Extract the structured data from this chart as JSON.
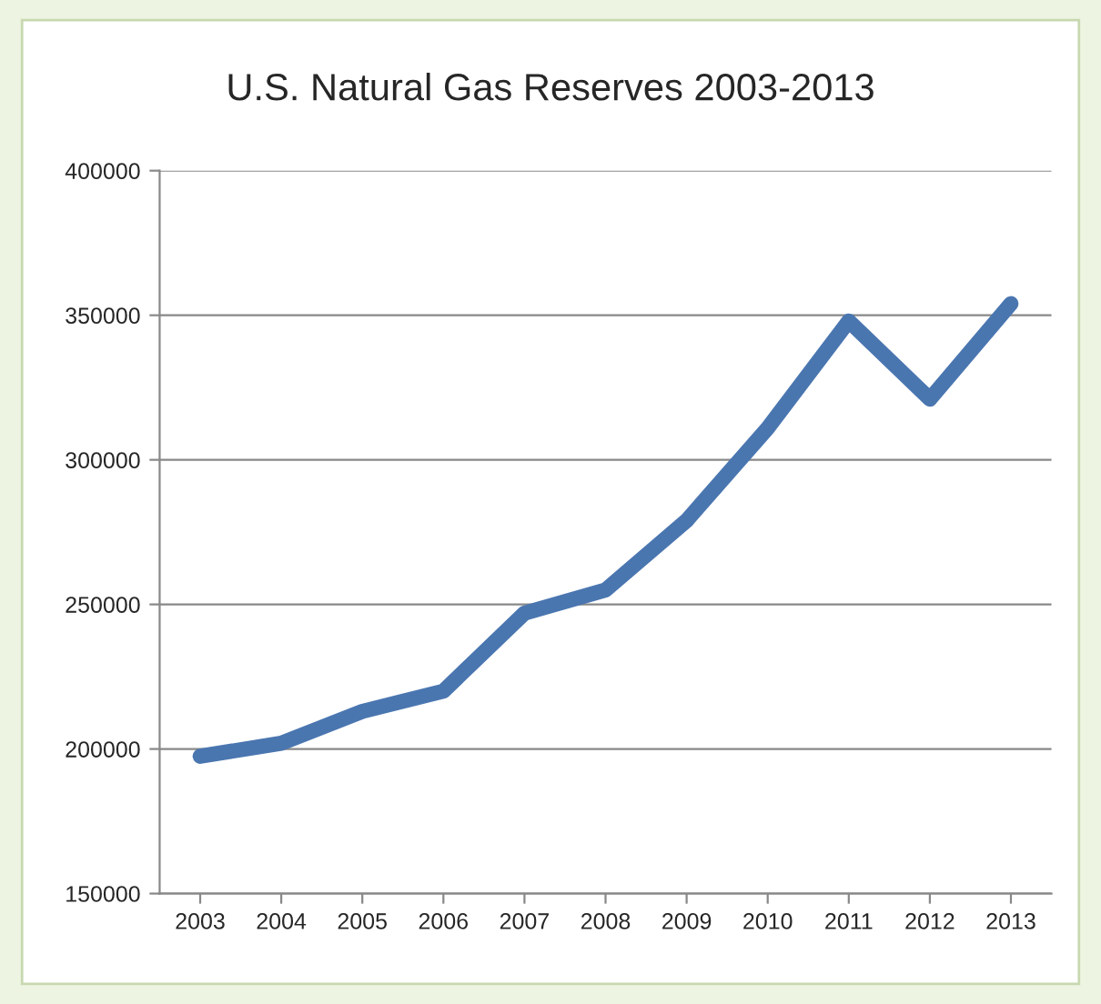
{
  "chart_data": {
    "type": "line",
    "title": "U.S. Natural Gas Reserves 2003-2013",
    "categories": [
      "2003",
      "2004",
      "2005",
      "2006",
      "2007",
      "2008",
      "2009",
      "2010",
      "2011",
      "2012",
      "2013"
    ],
    "series": [
      {
        "color": "#4a76b0",
        "values": [
          197500,
          202000,
          213000,
          220000,
          247000,
          255000,
          279000,
          311000,
          348000,
          321000,
          354000
        ]
      }
    ],
    "ylim": [
      150000,
      400000
    ],
    "yticks": [
      150000,
      200000,
      250000,
      300000,
      350000,
      400000
    ],
    "grid": "y",
    "marker": "none",
    "line_style": "solid"
  }
}
